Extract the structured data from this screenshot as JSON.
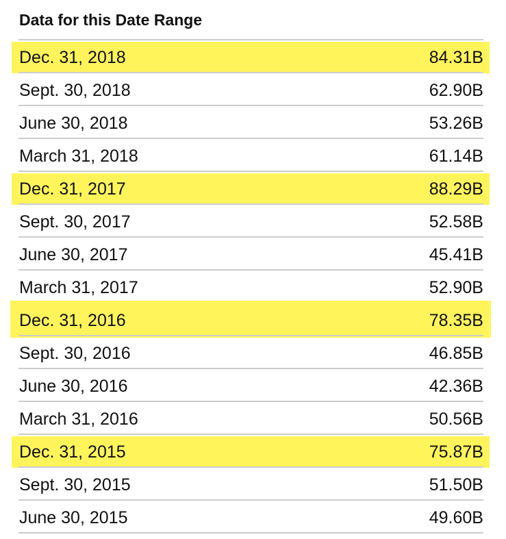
{
  "title": "Data for this Date Range",
  "highlight_color": "#fff45a",
  "rows": [
    {
      "date": "Dec. 31, 2018",
      "value": "84.31B",
      "highlighted": true
    },
    {
      "date": "Sept. 30, 2018",
      "value": "62.90B",
      "highlighted": false
    },
    {
      "date": "June 30, 2018",
      "value": "53.26B",
      "highlighted": false
    },
    {
      "date": "March 31, 2018",
      "value": "61.14B",
      "highlighted": false
    },
    {
      "date": "Dec. 31, 2017",
      "value": "88.29B",
      "highlighted": true
    },
    {
      "date": "Sept. 30, 2017",
      "value": "52.58B",
      "highlighted": false
    },
    {
      "date": "June 30, 2017",
      "value": "45.41B",
      "highlighted": false
    },
    {
      "date": "March 31, 2017",
      "value": "52.90B",
      "highlighted": false
    },
    {
      "date": "Dec. 31, 2016",
      "value": "78.35B",
      "highlighted": true
    },
    {
      "date": "Sept. 30, 2016",
      "value": "46.85B",
      "highlighted": false
    },
    {
      "date": "June 30, 2016",
      "value": "42.36B",
      "highlighted": false
    },
    {
      "date": "March 31, 2016",
      "value": "50.56B",
      "highlighted": false
    },
    {
      "date": "Dec. 31, 2015",
      "value": "75.87B",
      "highlighted": true
    },
    {
      "date": "Sept. 30, 2015",
      "value": "51.50B",
      "highlighted": false
    },
    {
      "date": "June 30, 2015",
      "value": "49.60B",
      "highlighted": false
    }
  ]
}
